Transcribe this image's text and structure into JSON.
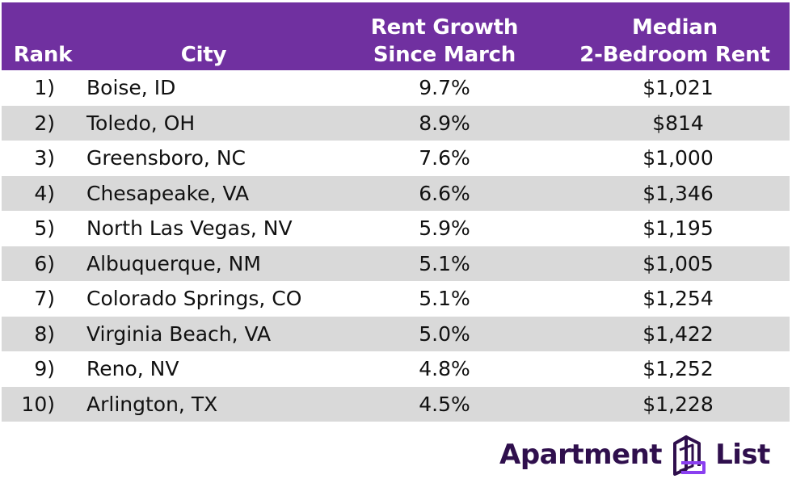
{
  "header": {
    "rank": "Rank",
    "city": "City",
    "growth_line1": "Rent Growth",
    "growth_line2": "Since March",
    "rent_line1": "Median",
    "rent_line2": "2-Bedroom Rent"
  },
  "rows": [
    {
      "rank": "1)",
      "city": "Boise, ID",
      "growth": "9.7%",
      "rent": "$1,021"
    },
    {
      "rank": "2)",
      "city": "Toledo, OH",
      "growth": "8.9%",
      "rent": "$814"
    },
    {
      "rank": "3)",
      "city": "Greensboro, NC",
      "growth": "7.6%",
      "rent": "$1,000"
    },
    {
      "rank": "4)",
      "city": "Chesapeake, VA",
      "growth": "6.6%",
      "rent": "$1,346"
    },
    {
      "rank": "5)",
      "city": "North Las Vegas, NV",
      "growth": "5.9%",
      "rent": "$1,195"
    },
    {
      "rank": "6)",
      "city": "Albuquerque, NM",
      "growth": "5.1%",
      "rent": "$1,005"
    },
    {
      "rank": "7)",
      "city": "Colorado Springs, CO",
      "growth": "5.1%",
      "rent": "$1,254"
    },
    {
      "rank": "8)",
      "city": "Virginia Beach, VA",
      "growth": "5.0%",
      "rent": "$1,422"
    },
    {
      "rank": "9)",
      "city": "Reno, NV",
      "growth": "4.8%",
      "rent": "$1,252"
    },
    {
      "rank": "10)",
      "city": "Arlington, TX",
      "growth": "4.5%",
      "rent": "$1,228"
    }
  ],
  "logo": {
    "word1": "Apartment",
    "word2": "List",
    "icon": "apartment-list-logo-icon"
  },
  "colors": {
    "header_bg": "#7030a0",
    "stripe": "#d9d9d9",
    "logo": "#2f0f4d"
  }
}
